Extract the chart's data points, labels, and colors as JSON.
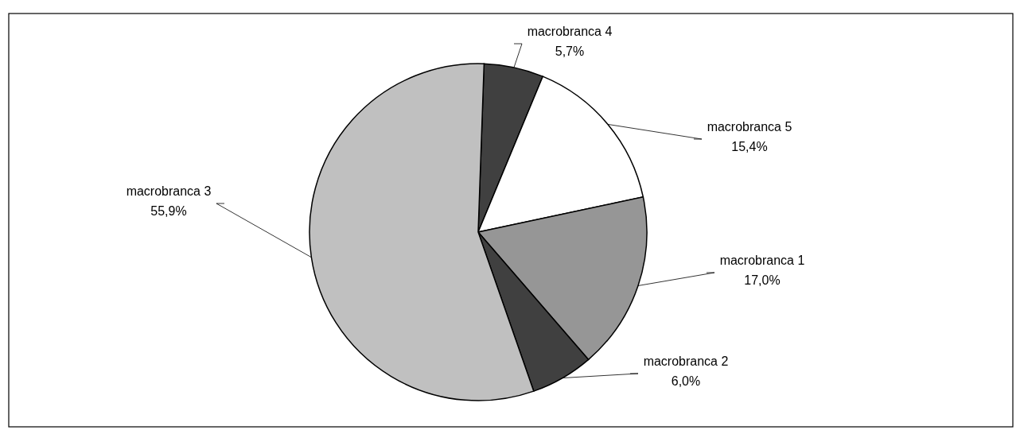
{
  "chart_data": {
    "type": "pie",
    "categories": [
      "macrobranca 4",
      "macrobranca 5",
      "macrobranca 1",
      "macrobranca 2",
      "macrobranca 3"
    ],
    "values": [
      5.7,
      15.4,
      17.0,
      6.0,
      55.9
    ],
    "colors": [
      "#404040",
      "#ffffff",
      "#969696",
      "#404040",
      "#c0c0c0"
    ],
    "value_labels": [
      "5,7%",
      "15,4%",
      "17,0%",
      "6,0%",
      "55,9%"
    ]
  }
}
